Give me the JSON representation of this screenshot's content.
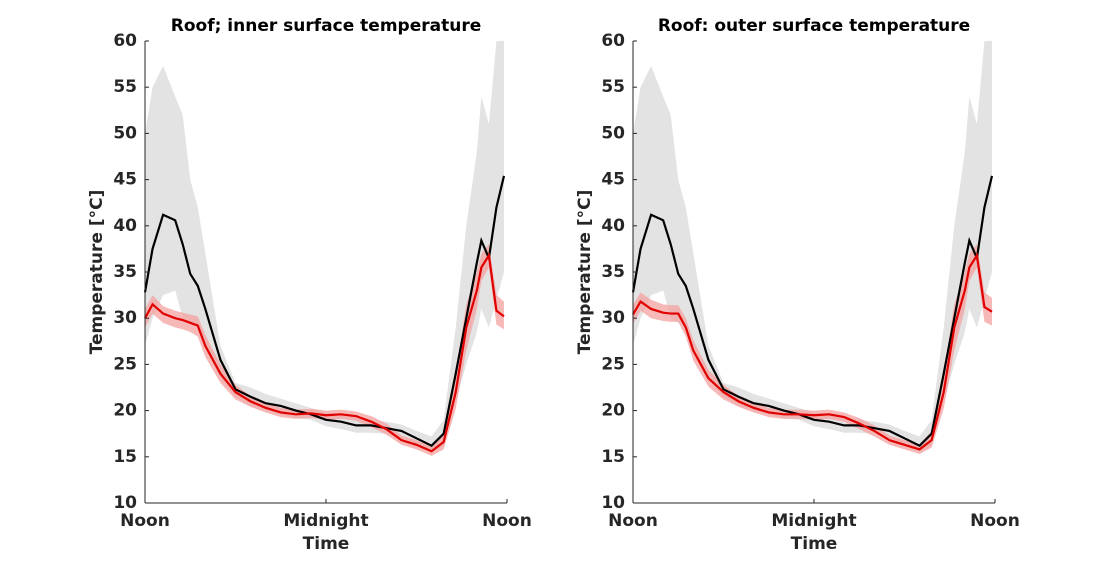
{
  "chart_data": [
    {
      "type": "line",
      "title": "Roof; inner surface temperature",
      "xlabel": "Time",
      "ylabel": "Temperature [°C]",
      "xlim": [
        0,
        24
      ],
      "xticks": [
        {
          "value": 0,
          "label": "Noon"
        },
        {
          "value": 12,
          "label": "Midnight"
        },
        {
          "value": 24,
          "label": "Noon"
        }
      ],
      "ylim": [
        10,
        60
      ],
      "yticks": [
        10,
        15,
        20,
        25,
        30,
        35,
        40,
        45,
        50,
        55,
        60
      ],
      "x": [
        0,
        0.5,
        1.2,
        2,
        2.5,
        3,
        3.5,
        4,
        5,
        6,
        7,
        8,
        9,
        10,
        11,
        12,
        13,
        14,
        15,
        16,
        17,
        18,
        19,
        19.8,
        20.6,
        21.3,
        22,
        22.3,
        22.8,
        23.3,
        23.8
      ],
      "lines": [
        {
          "color": "#e00000",
          "band_color": "#f4a0a0",
          "values": [
            30,
            31.5,
            30.5,
            30,
            29.8,
            29.5,
            29.2,
            27,
            24,
            22,
            21,
            20.3,
            19.8,
            19.6,
            19.7,
            19.5,
            19.6,
            19.4,
            18.8,
            18,
            16.8,
            16.3,
            15.6,
            16.6,
            22,
            29,
            33,
            35.5,
            36.8,
            30.8,
            30.2
          ],
          "band_upper": [
            31,
            32.5,
            31.3,
            30.8,
            30.6,
            30.4,
            30.2,
            28.2,
            25,
            22.8,
            21.6,
            20.8,
            20.3,
            20.1,
            20.2,
            20,
            20.1,
            19.9,
            19.4,
            18.6,
            17.3,
            16.8,
            16.1,
            17.5,
            24,
            31.5,
            35,
            37,
            38,
            32.5,
            31.8
          ],
          "band_lower": [
            29,
            30.5,
            29.5,
            29,
            28.8,
            28.5,
            28,
            25.8,
            23,
            21.2,
            20.4,
            19.8,
            19.3,
            19.1,
            19.2,
            19,
            19.1,
            18.9,
            18.2,
            17.4,
            16.3,
            15.8,
            15.1,
            15.8,
            20.2,
            26.5,
            31,
            34,
            35.5,
            29.3,
            28.8
          ]
        },
        {
          "color": "#000000",
          "band_color": "#e3e3e3",
          "values": [
            32.8,
            37.5,
            41.2,
            40.6,
            38,
            34.8,
            33.5,
            31,
            25.5,
            22.3,
            21.5,
            20.8,
            20.5,
            20,
            19.6,
            19,
            18.8,
            18.4,
            18.4,
            18.1,
            17.8,
            17,
            16.2,
            17.5,
            24,
            30,
            36,
            38.4,
            36.5,
            42,
            45.4
          ],
          "band_upper": [
            50,
            55,
            57.3,
            54,
            52,
            45,
            42,
            37,
            27,
            23,
            22.5,
            21.8,
            21.3,
            20.8,
            20.3,
            19.8,
            19.5,
            19.2,
            19,
            18.8,
            18.5,
            17.8,
            17.2,
            19,
            29,
            40,
            48,
            54,
            51,
            60,
            60
          ],
          "band_lower": [
            27,
            30,
            32.5,
            33,
            30,
            29.5,
            29,
            27,
            23.5,
            21.5,
            20.5,
            20,
            19.6,
            19.2,
            19,
            18.3,
            18,
            17.6,
            17.6,
            17.5,
            17,
            16.2,
            15.5,
            16.2,
            21,
            25,
            28.5,
            31,
            29,
            32,
            35
          ]
        }
      ]
    },
    {
      "type": "line",
      "title": "Roof: outer surface temperature",
      "xlabel": "Time",
      "ylabel": "Temperature [°C]",
      "xlim": [
        0,
        24
      ],
      "xticks": [
        {
          "value": 0,
          "label": "Noon"
        },
        {
          "value": 12,
          "label": "Midnight"
        },
        {
          "value": 24,
          "label": "Noon"
        }
      ],
      "ylim": [
        10,
        60
      ],
      "yticks": [
        10,
        15,
        20,
        25,
        30,
        35,
        40,
        45,
        50,
        55,
        60
      ],
      "x": [
        0,
        0.5,
        1.2,
        2,
        2.5,
        3,
        3.5,
        4,
        5,
        6,
        7,
        8,
        9,
        10,
        11,
        12,
        13,
        14,
        15,
        16,
        17,
        18,
        19,
        19.8,
        20.6,
        21.3,
        22,
        22.3,
        22.8,
        23.3,
        23.8
      ],
      "lines": [
        {
          "color": "#e00000",
          "band_color": "#f4a0a0",
          "values": [
            30.4,
            31.8,
            31,
            30.6,
            30.5,
            30.5,
            29,
            26.5,
            23.5,
            22,
            21,
            20.3,
            19.8,
            19.6,
            19.6,
            19.5,
            19.6,
            19.3,
            18.6,
            17.8,
            16.8,
            16.3,
            15.8,
            16.8,
            22,
            29,
            33,
            35.5,
            36.8,
            31.2,
            30.7
          ],
          "band_upper": [
            31.4,
            32.8,
            32,
            31.5,
            31.4,
            31.4,
            30,
            27.6,
            24.4,
            22.8,
            21.6,
            20.8,
            20.3,
            20.1,
            20.1,
            20,
            20.1,
            19.8,
            19.2,
            18.4,
            17.3,
            16.8,
            16.3,
            17.8,
            24,
            31.5,
            35,
            37,
            38,
            32.8,
            32.2
          ],
          "band_lower": [
            29.4,
            30.8,
            30,
            29.7,
            29.6,
            29.6,
            28,
            25.4,
            22.6,
            21.2,
            20.4,
            19.8,
            19.3,
            19.1,
            19.1,
            19,
            19.1,
            18.8,
            18,
            17.2,
            16.3,
            15.8,
            15.3,
            16,
            20.2,
            26.5,
            31,
            34,
            35.5,
            29.6,
            29.2
          ]
        },
        {
          "color": "#000000",
          "band_color": "#e3e3e3",
          "values": [
            32.8,
            37.5,
            41.2,
            40.6,
            38,
            34.8,
            33.5,
            31,
            25.5,
            22.3,
            21.5,
            20.8,
            20.5,
            20,
            19.6,
            19,
            18.8,
            18.4,
            18.4,
            18.1,
            17.8,
            17,
            16.2,
            17.5,
            24,
            30,
            36,
            38.4,
            36.5,
            42,
            45.4
          ],
          "band_upper": [
            50,
            55,
            57.3,
            54,
            52,
            45,
            42,
            37,
            27,
            23,
            22.5,
            21.8,
            21.3,
            20.8,
            20.3,
            19.8,
            19.5,
            19.2,
            19,
            18.8,
            18.5,
            17.8,
            17.2,
            19,
            29,
            40,
            48,
            54,
            51,
            60,
            60
          ],
          "band_lower": [
            27,
            30,
            32.5,
            33,
            30,
            29.5,
            29,
            27,
            23.5,
            21.5,
            20.5,
            20,
            19.6,
            19.2,
            19,
            18.3,
            18,
            17.6,
            17.6,
            17.5,
            17,
            16.2,
            15.5,
            16.2,
            21,
            25,
            28.5,
            31,
            29,
            32,
            35
          ]
        }
      ]
    }
  ]
}
